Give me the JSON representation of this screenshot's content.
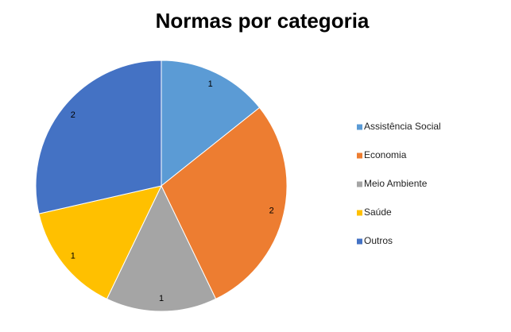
{
  "chart_data": {
    "type": "pie",
    "title": "Normas por categoria",
    "categories": [
      "Assistência Social",
      "Economia",
      "Meio Ambiente",
      "Saúde",
      "Outros"
    ],
    "values": [
      1,
      2,
      1,
      1,
      2
    ],
    "colors": [
      "#5b9bd5",
      "#ed7d31",
      "#a5a5a5",
      "#ffc000",
      "#4472c4"
    ],
    "legend": "right"
  }
}
